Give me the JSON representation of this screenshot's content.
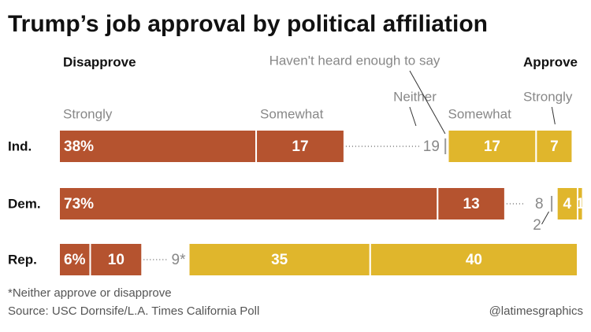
{
  "chart_data": {
    "type": "diverging-stacked-bar",
    "title": "Trump’s job approval by political affiliation",
    "disapprove_label": "Disapprove",
    "approve_label": "Approve",
    "categories": [
      "Ind.",
      "Dem.",
      "Rep."
    ],
    "series": [
      {
        "name": "Strongly",
        "color": "#b5532f",
        "values": [
          38,
          73,
          6
        ],
        "value_labels": [
          "38%",
          "73%",
          "6%"
        ]
      },
      {
        "name": "Somewhat",
        "color": "#b5532f",
        "values": [
          17,
          13,
          10
        ]
      },
      {
        "name": "Neither",
        "color": "#999999",
        "values": [
          19,
          8,
          9
        ],
        "value_labels": [
          "19",
          "8",
          "9*"
        ]
      },
      {
        "name": "Haven't heard enough to say",
        "color": "#999999",
        "values": [
          1,
          2,
          null
        ]
      },
      {
        "name": "Somewhat",
        "color": "#e0b62c",
        "values": [
          17,
          4,
          35
        ]
      },
      {
        "name": "Strongly",
        "color": "#e0b62c",
        "values": [
          7,
          1,
          40
        ]
      }
    ],
    "footnote": "*Neither approve or disapprove",
    "source": "Source: USC Dornsife/L.A. Times California Poll",
    "credit": "@latimesgraphics"
  }
}
